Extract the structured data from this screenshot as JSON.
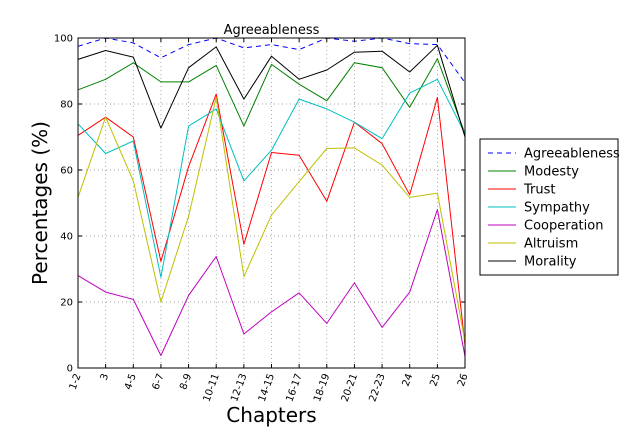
{
  "chart_data": {
    "type": "line",
    "title": "Agreeableness",
    "xlabel": "Chapters",
    "ylabel": "Percentages (%)",
    "ylim": [
      0,
      100
    ],
    "yticks": [
      "0",
      "20",
      "40",
      "60",
      "80",
      "100"
    ],
    "grid": true,
    "legend_position": "right",
    "categories": [
      "1-2",
      "3",
      "4-5",
      "6-7",
      "8-9",
      "10-11",
      "12-13",
      "14-15",
      "16-17",
      "18-19",
      "20-21",
      "22-23",
      "24",
      "25",
      "26"
    ],
    "series": [
      {
        "name": "Agreeableness",
        "color": "#0000ff",
        "dash": "dashed",
        "values": [
          97.5,
          100,
          98.5,
          94,
          98,
          100,
          97,
          98,
          96.5,
          100,
          99,
          100,
          98.3,
          98,
          86.5
        ]
      },
      {
        "name": "Modesty",
        "color": "#008000",
        "dash": "solid",
        "values": [
          84.3,
          87.5,
          92.5,
          86.7,
          86.7,
          91.7,
          73.3,
          92,
          86,
          81,
          92.5,
          91,
          79,
          93.7,
          71
        ]
      },
      {
        "name": "Trust",
        "color": "#ff0000",
        "dash": "solid",
        "values": [
          70.5,
          76,
          70,
          32.3,
          61,
          83,
          37.5,
          65.3,
          64.5,
          50.5,
          74.5,
          68,
          52.5,
          82,
          7
        ]
      },
      {
        "name": "Sympathy",
        "color": "#00bfbf",
        "dash": "solid",
        "values": [
          74,
          65,
          68.8,
          27.5,
          73.3,
          78.5,
          56.7,
          66,
          81.5,
          78.5,
          74.5,
          69.5,
          83.3,
          87.5,
          71
        ]
      },
      {
        "name": "Cooperation",
        "color": "#bf00bf",
        "dash": "solid",
        "values": [
          28,
          23,
          20.8,
          3.8,
          22,
          33.8,
          10.3,
          17,
          22.8,
          13.5,
          25.8,
          12.3,
          23,
          48,
          3.5
        ]
      },
      {
        "name": "Altruism",
        "color": "#bfbf00",
        "dash": "solid",
        "values": [
          51.7,
          76,
          56.7,
          20,
          46,
          82,
          27.7,
          46.3,
          56.5,
          66.5,
          66.7,
          61.5,
          51.7,
          53,
          8
        ]
      },
      {
        "name": "Morality",
        "color": "#000000",
        "dash": "solid",
        "values": [
          93.5,
          96.2,
          94.2,
          72.7,
          91,
          97.3,
          81.5,
          94.5,
          87.5,
          90.3,
          95.7,
          96,
          89.7,
          97.8,
          70
        ]
      }
    ]
  }
}
